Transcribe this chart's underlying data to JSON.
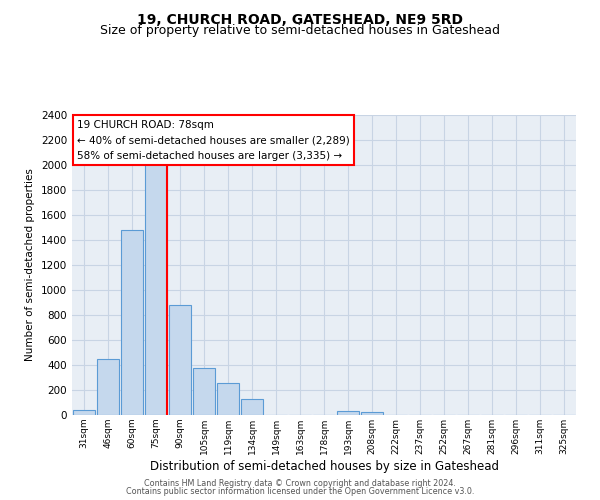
{
  "title": "19, CHURCH ROAD, GATESHEAD, NE9 5RD",
  "subtitle": "Size of property relative to semi-detached houses in Gateshead",
  "bar_labels": [
    "31sqm",
    "46sqm",
    "60sqm",
    "75sqm",
    "90sqm",
    "105sqm",
    "119sqm",
    "134sqm",
    "149sqm",
    "163sqm",
    "178sqm",
    "193sqm",
    "208sqm",
    "222sqm",
    "237sqm",
    "252sqm",
    "267sqm",
    "281sqm",
    "296sqm",
    "311sqm",
    "325sqm"
  ],
  "bar_values": [
    40,
    450,
    1480,
    2010,
    880,
    375,
    255,
    125,
    0,
    0,
    0,
    35,
    25,
    0,
    0,
    0,
    0,
    0,
    0,
    0,
    0
  ],
  "bar_color": "#c5d8ed",
  "bar_edge_color": "#5b9bd5",
  "xlabel": "Distribution of semi-detached houses by size in Gateshead",
  "ylabel": "Number of semi-detached properties",
  "ylim": [
    0,
    2400
  ],
  "yticks": [
    0,
    200,
    400,
    600,
    800,
    1000,
    1200,
    1400,
    1600,
    1800,
    2000,
    2200,
    2400
  ],
  "property_label": "19 CHURCH ROAD: 78sqm",
  "annotation_line1": "← 40% of semi-detached houses are smaller (2,289)",
  "annotation_line2": "58% of semi-detached houses are larger (3,335) →",
  "vline_bar_index": 3,
  "footer_line1": "Contains HM Land Registry data © Crown copyright and database right 2024.",
  "footer_line2": "Contains public sector information licensed under the Open Government Licence v3.0.",
  "background_color": "#ffffff",
  "plot_bg_color": "#e8eef5",
  "grid_color": "#c8d4e4",
  "title_fontsize": 10,
  "subtitle_fontsize": 9
}
